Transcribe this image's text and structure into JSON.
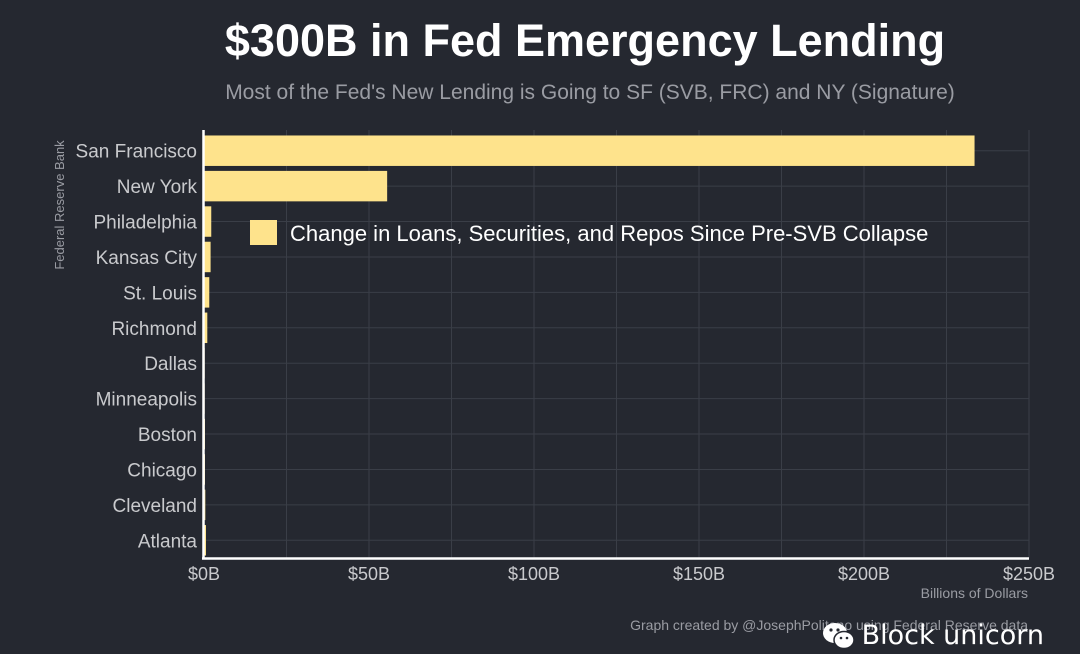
{
  "chart_data": {
    "type": "bar",
    "orientation": "horizontal",
    "title": "$300B in Fed Emergency Lending",
    "subtitle": "Most of the Fed's New Lending is Going to SF (SVB, FRC) and NY (Signature)",
    "xlabel": "Billions of Dollars",
    "ylabel": "Federal Reserve Bank",
    "xlim": [
      0,
      250
    ],
    "xticks": [
      0,
      50,
      100,
      150,
      200,
      250
    ],
    "xtick_labels": [
      "$0B",
      "$50B",
      "$100B",
      "$150B",
      "$200B",
      "$250B"
    ],
    "categories": [
      "San Francisco",
      "New York",
      "Philadelphia",
      "Kansas City",
      "St. Louis",
      "Richmond",
      "Dallas",
      "Minneapolis",
      "Boston",
      "Chicago",
      "Cleveland",
      "Atlanta"
    ],
    "series": [
      {
        "name": "Change in Loans, Securities, and Repos Since Pre-SVB Collapse",
        "color": "#FEE38C",
        "values": [
          233.5,
          55.5,
          2.2,
          2.0,
          1.6,
          1.0,
          0.2,
          0.2,
          0.3,
          0.3,
          0.4,
          0.6
        ]
      }
    ],
    "legend_position": "upper-middle",
    "grid": true,
    "caption": "Graph created by @JosephPolitano using Federal Reserve data"
  },
  "colors": {
    "background": "#252830",
    "grid": "#3a3e47",
    "axis": "#ffffff",
    "bar": "#FEE38C",
    "text_muted": "#9a9ca3",
    "tick_text": "#c9cacd"
  },
  "watermark": {
    "text": "Block unicorn",
    "icon": "wechat-icon"
  }
}
